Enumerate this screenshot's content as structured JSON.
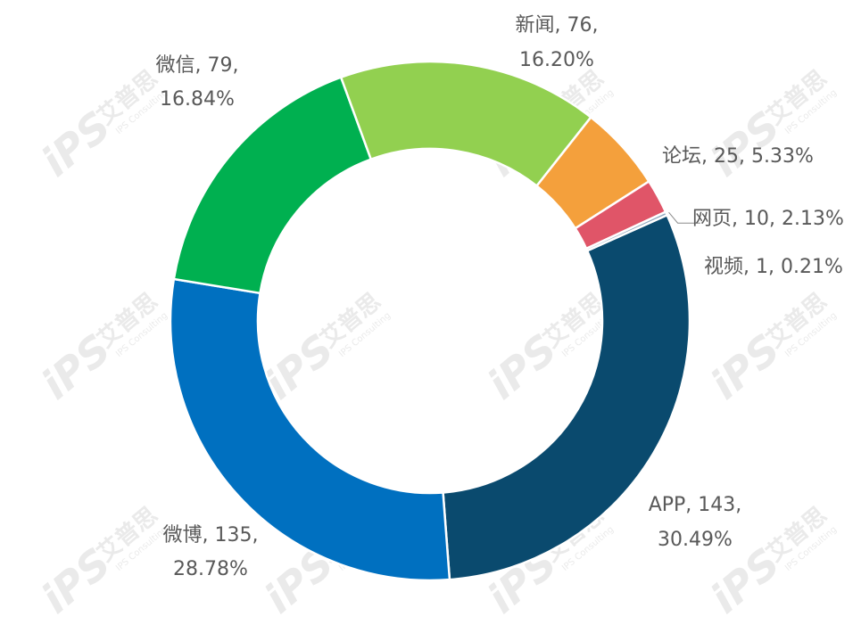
{
  "chart_data": {
    "type": "pie",
    "donut": true,
    "title": "",
    "slices": [
      {
        "name": "APP",
        "value": 143,
        "percent": "30.49%",
        "color": "#0a4a6e"
      },
      {
        "name": "微博",
        "value": 135,
        "percent": "28.78%",
        "color": "#0070c0"
      },
      {
        "name": "微信",
        "value": 79,
        "percent": "16.84%",
        "color": "#00b050"
      },
      {
        "name": "新闻",
        "value": 76,
        "percent": "16.20%",
        "color": "#92d050"
      },
      {
        "name": "论坛",
        "value": 25,
        "percent": "5.33%",
        "color": "#f4a03c"
      },
      {
        "name": "网页",
        "value": 10,
        "percent": "2.13%",
        "color": "#e05568"
      },
      {
        "name": "视频",
        "value": 1,
        "percent": "0.21%",
        "color": "#8fa8bf"
      }
    ],
    "data_labels": [
      {
        "line1": "APP, 143,",
        "line2": "30.49%"
      },
      {
        "line1": "微博, 135,",
        "line2": "28.78%"
      },
      {
        "line1": "微信, 79,",
        "line2": "16.84%"
      },
      {
        "line1": "新闻, 76,",
        "line2": "16.20%"
      },
      {
        "line1": "论坛, 25, 5.33%",
        "line2": ""
      },
      {
        "line1": "网页, 10, 2.13%",
        "line2": ""
      },
      {
        "line1": "视频, 1, 0.21%",
        "line2": ""
      }
    ],
    "legend": "none"
  },
  "watermark": {
    "brand": "iPS",
    "cn": "艾普思",
    "en": "IPS Consulting"
  }
}
